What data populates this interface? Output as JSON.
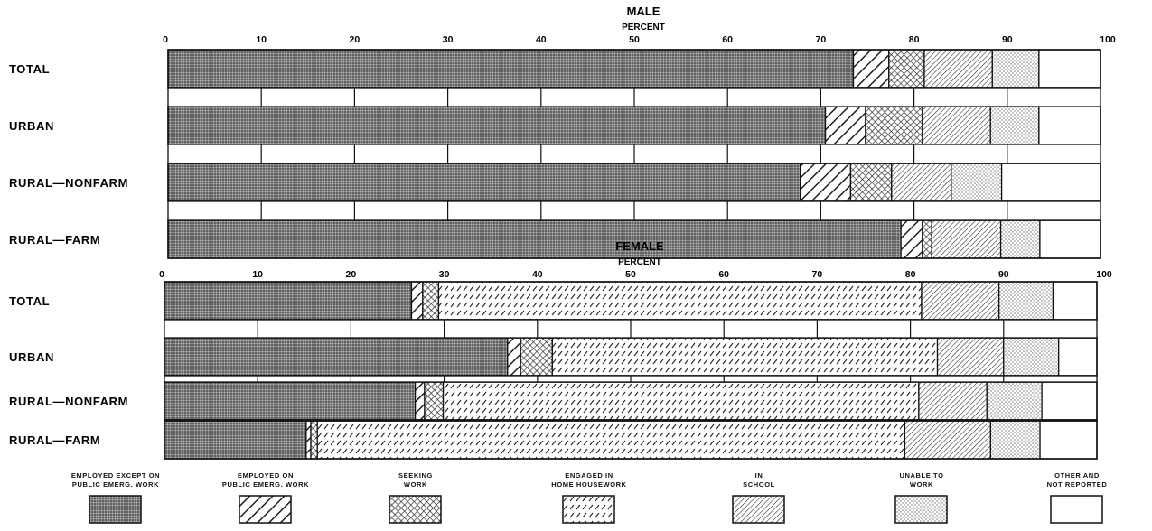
{
  "chart_data": [
    {
      "type": "bar",
      "orientation": "horizontal",
      "stacked": true,
      "title": "MALE",
      "subtitle": "PERCENT",
      "xlim": [
        0,
        100
      ],
      "ticks": [
        "0",
        "10",
        "20",
        "30",
        "40",
        "50",
        "60",
        "70",
        "80",
        "90",
        "100"
      ],
      "categories": [
        "TOTAL",
        "URBAN",
        "RURAL—NONFARM",
        "RURAL—FARM"
      ],
      "series": [
        {
          "name": "EMPLOYED EXCEPT ON PUBLIC EMERG. WORK",
          "values": [
            73.5,
            70.5,
            67.8,
            78.6
          ]
        },
        {
          "name": "EMPLOYED ON PUBLIC EMERG. WORK",
          "values": [
            3.8,
            4.3,
            5.4,
            2.3
          ]
        },
        {
          "name": "SEEKING WORK",
          "values": [
            3.8,
            6.1,
            4.4,
            1.0
          ]
        },
        {
          "name": "ENGAGED IN HOME HOUSEWORK",
          "values": [
            0,
            0,
            0,
            0
          ]
        },
        {
          "name": "IN SCHOOL",
          "values": [
            7.3,
            7.3,
            6.4,
            7.4
          ]
        },
        {
          "name": "UNABLE TO WORK",
          "values": [
            5.0,
            5.2,
            5.4,
            4.2
          ]
        },
        {
          "name": "OTHER AND NOT REPORTED",
          "values": [
            6.6,
            6.6,
            10.6,
            6.5
          ]
        }
      ]
    },
    {
      "type": "bar",
      "orientation": "horizontal",
      "stacked": true,
      "title": "FEMALE",
      "subtitle": "PERCENT",
      "xlim": [
        0,
        100
      ],
      "ticks": [
        "0",
        "10",
        "20",
        "30",
        "40",
        "50",
        "60",
        "70",
        "80",
        "90",
        "100"
      ],
      "categories": [
        "TOTAL",
        "URBAN",
        "RURAL—NONFARM",
        "RURAL—FARM"
      ],
      "series": [
        {
          "name": "EMPLOYED EXCEPT ON PUBLIC EMERG. WORK",
          "values": [
            26.5,
            36.8,
            26.9,
            15.2
          ]
        },
        {
          "name": "EMPLOYED ON PUBLIC EMERG. WORK",
          "values": [
            1.2,
            1.4,
            1.0,
            0.5
          ]
        },
        {
          "name": "SEEKING WORK",
          "values": [
            1.7,
            3.4,
            2.0,
            0.7
          ]
        },
        {
          "name": "ENGAGED IN HOME HOUSEWORK",
          "values": [
            51.8,
            41.3,
            51.0,
            63.0
          ]
        },
        {
          "name": "IN SCHOOL",
          "values": [
            8.3,
            7.1,
            7.3,
            9.2
          ]
        },
        {
          "name": "UNABLE TO WORK",
          "values": [
            5.8,
            5.9,
            5.9,
            5.3
          ]
        },
        {
          "name": "OTHER AND NOT REPORTED",
          "values": [
            4.7,
            4.1,
            5.9,
            6.1
          ]
        }
      ]
    }
  ],
  "legend": [
    {
      "label": "EMPLOYED EXCEPT ON\nPUBLIC EMERG. WORK",
      "pattern": "dots-dark"
    },
    {
      "label": "EMPLOYED ON\nPUBLIC EMERG. WORK",
      "pattern": "hatch-bold"
    },
    {
      "label": "SEEKING\nWORK",
      "pattern": "crosshatch"
    },
    {
      "label": "ENGAGED IN\nHOME HOUSEWORK",
      "pattern": "dashes"
    },
    {
      "label": "IN\nSCHOOL",
      "pattern": "hatch-fine"
    },
    {
      "label": "UNABLE TO\nWORK",
      "pattern": "dots-light"
    },
    {
      "label": "OTHER AND\nNOT REPORTED",
      "pattern": "blank"
    }
  ],
  "colors": {
    "ink": "#111111",
    "dark_fill": "#8a8a8a",
    "paper": "#ffffff"
  }
}
